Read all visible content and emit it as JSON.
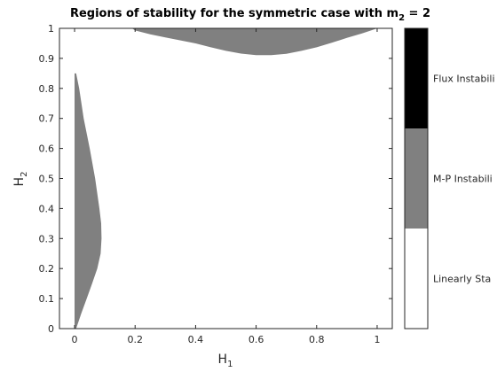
{
  "chart_data": {
    "type": "heatmap",
    "title": {
      "main": "Regions of stability for the symmetric case with m",
      "subscript": "2",
      "suffix": " = 2"
    },
    "xlabel": {
      "main": "H",
      "subscript": "1"
    },
    "ylabel": {
      "main": "H",
      "subscript": "2"
    },
    "xlim": [
      -0.05,
      1.05
    ],
    "ylim": [
      0,
      1
    ],
    "xticks": [
      0,
      0.2,
      0.4,
      0.6,
      0.8,
      1
    ],
    "xtick_labels": [
      "0",
      "0.2",
      "0.4",
      "0.6",
      "0.8",
      "1"
    ],
    "yticks": [
      0,
      0.1,
      0.2,
      0.3,
      0.4,
      0.5,
      0.6,
      0.7,
      0.8,
      0.9,
      1
    ],
    "ytick_labels": [
      "0",
      "0.1",
      "0.2",
      "0.3",
      "0.4",
      "0.5",
      "0.6",
      "0.7",
      "0.8",
      "0.9",
      "1"
    ],
    "colors": {
      "linearly_stable": "#ffffff",
      "mp_instability": "#808080",
      "flux_instability": "#000000"
    },
    "regions": [
      {
        "class": "mp_instability",
        "kind": "vertical_band",
        "x_left": 0,
        "boundary": [
          [
            0.85,
            0.005
          ],
          [
            0.8,
            0.015
          ],
          [
            0.7,
            0.03
          ],
          [
            0.6,
            0.05
          ],
          [
            0.5,
            0.068
          ],
          [
            0.4,
            0.082
          ],
          [
            0.35,
            0.088
          ],
          [
            0.3,
            0.089
          ],
          [
            0.25,
            0.086
          ],
          [
            0.2,
            0.075
          ],
          [
            0.15,
            0.058
          ],
          [
            0.1,
            0.04
          ],
          [
            0.05,
            0.022
          ],
          [
            0.0,
            0.005
          ]
        ]
      },
      {
        "class": "mp_instability",
        "kind": "horizontal_band",
        "y_top": 1,
        "boundary": [
          [
            0.19,
            1.0
          ],
          [
            0.2,
            0.993
          ],
          [
            0.25,
            0.98
          ],
          [
            0.3,
            0.97
          ],
          [
            0.35,
            0.96
          ],
          [
            0.4,
            0.95
          ],
          [
            0.45,
            0.937
          ],
          [
            0.5,
            0.925
          ],
          [
            0.55,
            0.916
          ],
          [
            0.6,
            0.911
          ],
          [
            0.65,
            0.911
          ],
          [
            0.7,
            0.915
          ],
          [
            0.75,
            0.925
          ],
          [
            0.8,
            0.937
          ],
          [
            0.85,
            0.952
          ],
          [
            0.9,
            0.968
          ],
          [
            0.95,
            0.983
          ],
          [
            0.98,
            0.993
          ],
          [
            1.0,
            1.0
          ]
        ]
      }
    ],
    "colorbar": {
      "segments": [
        {
          "class": "linearly_stable",
          "label": "Linearly Sta"
        },
        {
          "class": "mp_instability",
          "label": "M-P Instabili"
        },
        {
          "class": "flux_instability",
          "label": "Flux Instabili"
        }
      ]
    }
  }
}
